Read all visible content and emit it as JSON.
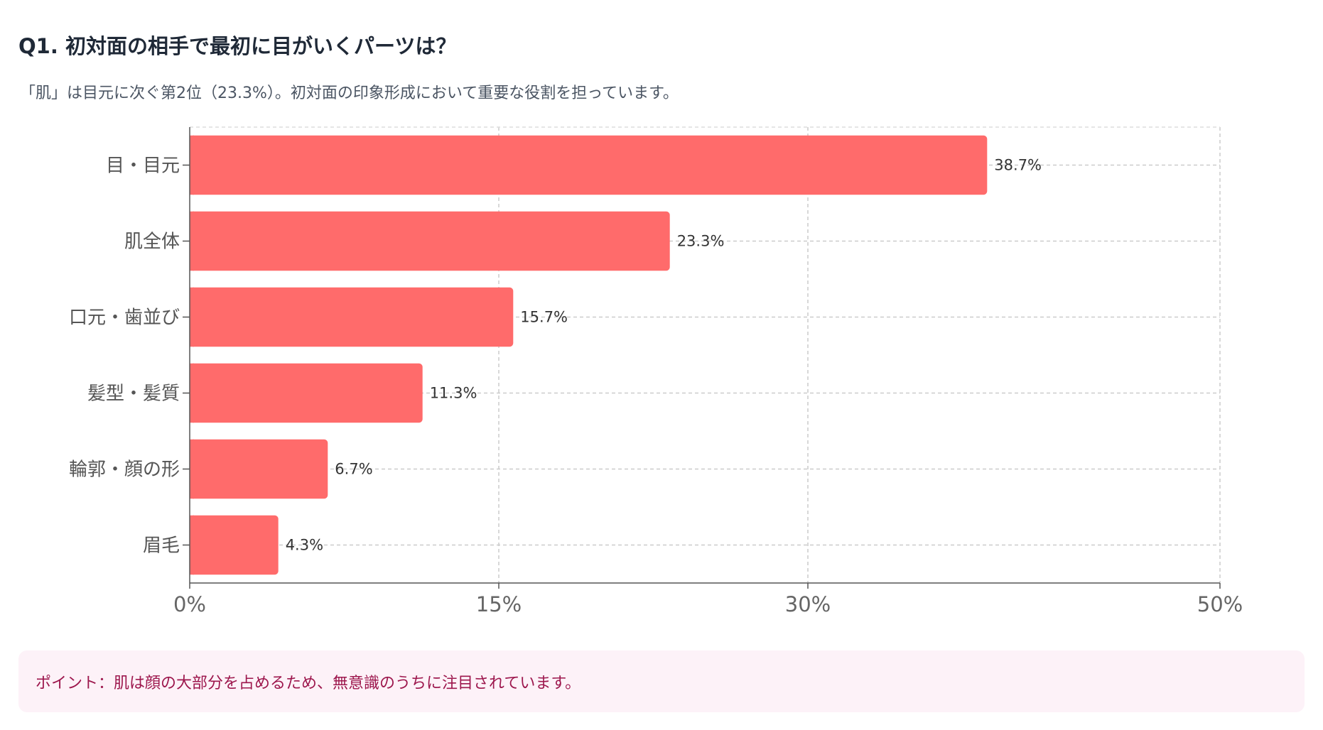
{
  "header": {
    "title": "Q1. 初対面の相手で最初に目がいくパーツは？",
    "subtitle": "「肌」は目元に次ぐ第2位（23.3%）。初対面の印象形成において重要な役割を担っています。"
  },
  "chart_data": {
    "type": "bar",
    "orientation": "horizontal",
    "categories": [
      "目・目元",
      "肌全体",
      "口元・歯並び",
      "髪型・髪質",
      "輪郭・顔の形",
      "眉毛"
    ],
    "values": [
      38.7,
      23.3,
      15.7,
      11.3,
      6.7,
      4.3
    ],
    "value_labels": [
      "38.7%",
      "23.3%",
      "15.7%",
      "11.3%",
      "6.7%",
      "4.3%"
    ],
    "xlim": [
      0,
      50
    ],
    "x_ticks": [
      0,
      15,
      30,
      50
    ],
    "x_tick_labels": [
      "0%",
      "15%",
      "30%",
      "50%"
    ],
    "grid": true,
    "bar_color": "#ff6b6b",
    "title": "Q1. 初対面の相手で最初に目がいくパーツは？",
    "xlabel": "",
    "ylabel": ""
  },
  "note": {
    "text": "ポイント：肌は顔の大部分を占めるため、無意識のうちに注目されています。"
  }
}
